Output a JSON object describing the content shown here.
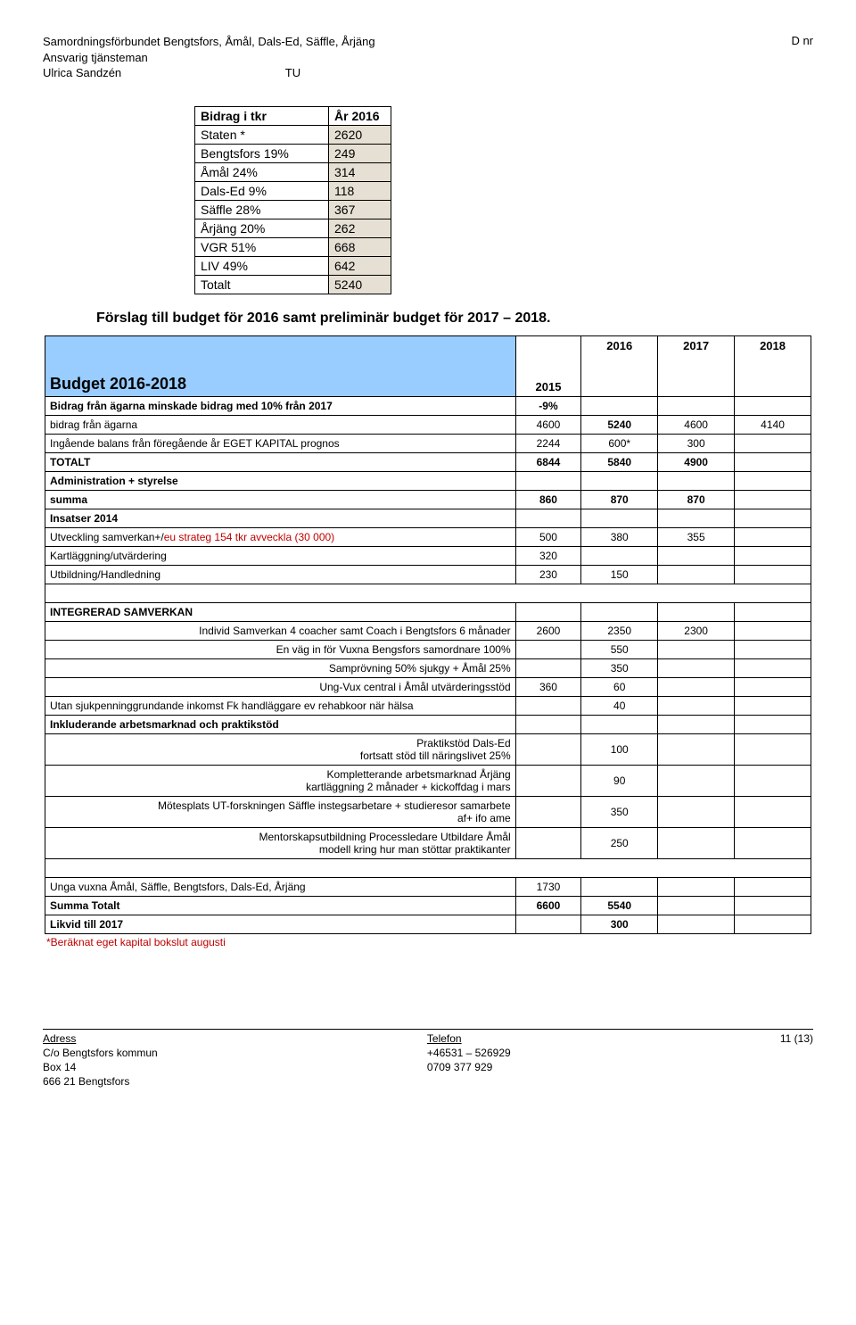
{
  "header": {
    "org": "Samordningsförbundet Bengtsfors, Åmål, Dals-Ed, Säffle, Årjäng",
    "role": "Ansvarig tjänsteman",
    "name": "Ulrica Sandzén",
    "tu": "TU",
    "dnr": "D nr"
  },
  "contrib_table": {
    "rows": [
      {
        "label": "Bidrag i tkr",
        "val": "År 2016",
        "shade_val": false
      },
      {
        "label": "Staten *",
        "val": "2620",
        "shade_val": true
      },
      {
        "label": "Bengtsfors 19%",
        "val": "249",
        "shade_val": true
      },
      {
        "label": "Åmål 24%",
        "val": "314",
        "shade_val": true
      },
      {
        "label": "Dals-Ed 9%",
        "val": "118",
        "shade_val": true
      },
      {
        "label": "Säffle 28%",
        "val": "367",
        "shade_val": true
      },
      {
        "label": "Årjäng 20%",
        "val": "262",
        "shade_val": true
      },
      {
        "label": "VGR 51%",
        "val": "668",
        "shade_val": true
      },
      {
        "label": "LIV 49%",
        "val": "642",
        "shade_val": true
      },
      {
        "label": "Totalt",
        "val": "5240",
        "shade_val": true
      }
    ]
  },
  "proposal_title": "Förslag till budget för 2016 samt preliminär budget för 2017 – 2018.",
  "budget": {
    "title": "Budget 2016-2018",
    "year_col": "2015",
    "years": [
      "2016",
      "2017",
      "2018"
    ],
    "rows": [
      {
        "label": "Bidrag från ägarna minskade bidrag med 10% från 2017",
        "bold": true,
        "c2015": "-9%",
        "c2016": "",
        "c2017": "",
        "c2018": ""
      },
      {
        "label": "bidrag från ägarna",
        "c2015": "4600",
        "c2016": "5240",
        "c2017": "4600",
        "c2018": "4140",
        "bold2016": true
      },
      {
        "label": "Ingående balans från föregående år EGET KAPITAL  prognos",
        "c2015": "2244",
        "c2016": "600*",
        "c2017": "300",
        "c2018": ""
      },
      {
        "label": " TOTALT",
        "bold": true,
        "c2015": "6844",
        "c2016": "5840",
        "c2017": "4900",
        "c2018": "",
        "bold2016": true
      },
      {
        "label": "Administration + styrelse",
        "bold": true,
        "c2015": "",
        "c2016": "",
        "c2017": "",
        "c2018": ""
      },
      {
        "label": "summa",
        "bold": true,
        "c2015": "860",
        "c2016": "870",
        "c2017": "870",
        "c2018": ""
      },
      {
        "label": "Insatser 2014",
        "bold": true,
        "c2015": "",
        "c2016": "",
        "c2017": "",
        "c2018": ""
      },
      {
        "label_html": "Utveckling samverkan+/<span class='redtxt'>eu strateg 154 tkr avveckla (30 000)</span>",
        "c2015": "500",
        "c2016": "380",
        "c2017": "355",
        "c2018": ""
      },
      {
        "label": "Kartläggning/utvärdering",
        "c2015": "320",
        "c2016": "",
        "c2017": "",
        "c2018": ""
      },
      {
        "label": "Utbildning/Handledning",
        "c2015": "230",
        "c2016": "150",
        "c2017": "",
        "c2018": ""
      },
      {
        "spacer": true
      },
      {
        "label": "INTEGRERAD SAMVERKAN",
        "bold": true,
        "c2015": "",
        "c2016": "",
        "c2017": "",
        "c2018": ""
      },
      {
        "label": "Individ Samverkan 4 coacher samt  Coach i Bengtsfors 6 månader",
        "right": true,
        "c2015": "2600",
        "c2016": "2350",
        "c2017": "2300",
        "c2018": ""
      },
      {
        "label": "En väg in för Vuxna Bengsfors samordnare 100%",
        "right": true,
        "c2015": "",
        "c2016": "550",
        "c2017": "",
        "c2018": ""
      },
      {
        "label": "Samprövning 50% sjukgy + Åmål 25%",
        "right": true,
        "c2015": "",
        "c2016": "350",
        "c2017": "",
        "c2018": ""
      },
      {
        "label": "Ung-Vux central i Åmål utvärderingsstöd",
        "right": true,
        "c2015": "360",
        "c2016": "60",
        "c2017": "",
        "c2018": ""
      },
      {
        "label": "Utan sjukpenninggrundande inkomst Fk handläggare ev rehabkoor när hälsa",
        "c2015": "",
        "c2016": "40",
        "c2017": "",
        "c2018": ""
      },
      {
        "label": "Inkluderande arbetsmarknad och praktikstöd",
        "bold": true,
        "c2015": "",
        "c2016": "",
        "c2017": "",
        "c2018": ""
      },
      {
        "label": "Praktikstöd Dals-Ed\nfortsatt stöd till näringslivet 25%",
        "right": true,
        "multiline": true,
        "c2015": "",
        "c2016": "100",
        "c2017": "",
        "c2018": ""
      },
      {
        "label": "Kompletterande arbetsmarknad Årjäng\nkartläggning 2 månader + kickoffdag i mars",
        "right": true,
        "multiline": true,
        "c2015": "",
        "c2016": "90",
        "c2017": "",
        "c2018": ""
      },
      {
        "label": "Mötesplats UT-forskningen Säffle instegsarbetare + studieresor samarbete\naf+ ifo ame",
        "right": true,
        "multiline": true,
        "c2015": "",
        "c2016": "350",
        "c2017": "",
        "c2018": ""
      },
      {
        "label": "Mentorskapsutbildning Processledare Utbildare Åmål\nmodell kring hur man stöttar praktikanter",
        "right": true,
        "multiline": true,
        "c2015": "",
        "c2016": "250",
        "c2017": "",
        "c2018": ""
      },
      {
        "spacer": true
      },
      {
        "label": "Unga vuxna Åmål, Säffle, Bengtsfors, Dals-Ed, Årjäng",
        "c2015": "1730",
        "c2016": "",
        "c2017": "",
        "c2018": ""
      },
      {
        "label": "Summa Totalt",
        "bold": true,
        "c2015": "6600",
        "c2016": "5540",
        "c2017": "",
        "c2018": ""
      },
      {
        "label": "Likvid till 2017",
        "bold": true,
        "c2015": "",
        "c2016": "300",
        "c2017": "",
        "c2018": ""
      }
    ]
  },
  "footnote": "*Beräknat eget kapital bokslut augusti",
  "footer": {
    "addr_label": "Adress",
    "addr_lines": [
      "C/o Bengtsfors kommun",
      "Box 14",
      "666 21 Bengtsfors"
    ],
    "tel_label": "Telefon",
    "tel_lines": [
      "+46531 – 526929",
      "0709 377 929"
    ],
    "page": "11 (13)"
  }
}
